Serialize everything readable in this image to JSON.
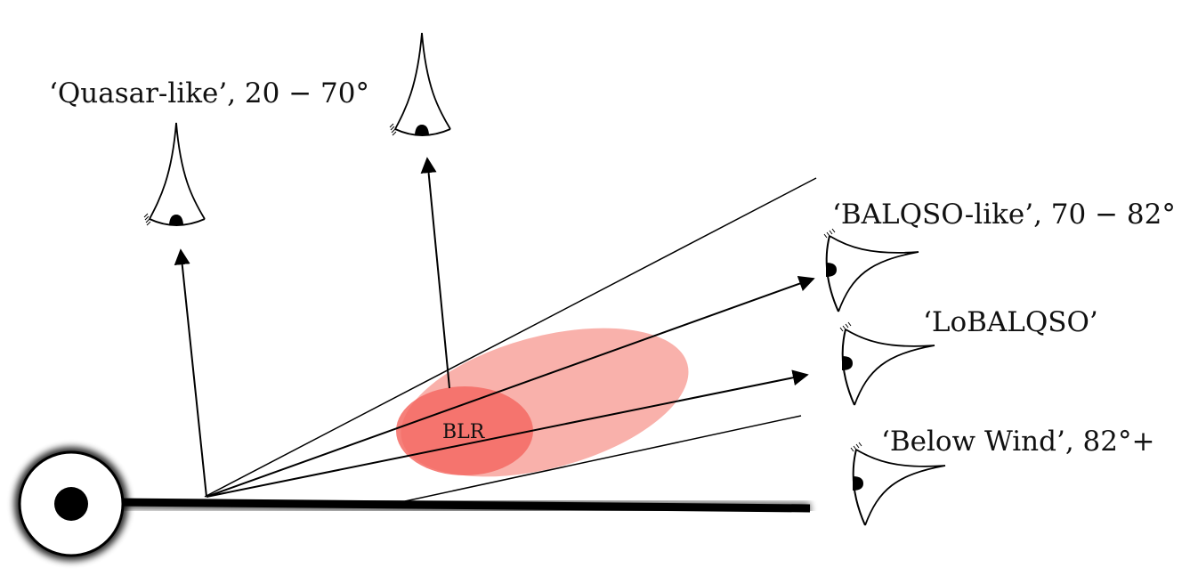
{
  "labels": {
    "quasar_like": "‘Quasar-like’, 20 − 70°",
    "balqso_like": "‘BALQSO-like’, 70 − 82°",
    "lobalqso": "‘LoBALQSO’",
    "below_wind": "‘Below Wind’, 82°+",
    "blr": "BLR"
  },
  "colors": {
    "blr_inner": "#f46a63",
    "blr_outer": "#f8a9a2",
    "ink": "#000000"
  },
  "icons": [
    "eye-icon",
    "black-hole-icon",
    "accretion-disk"
  ]
}
